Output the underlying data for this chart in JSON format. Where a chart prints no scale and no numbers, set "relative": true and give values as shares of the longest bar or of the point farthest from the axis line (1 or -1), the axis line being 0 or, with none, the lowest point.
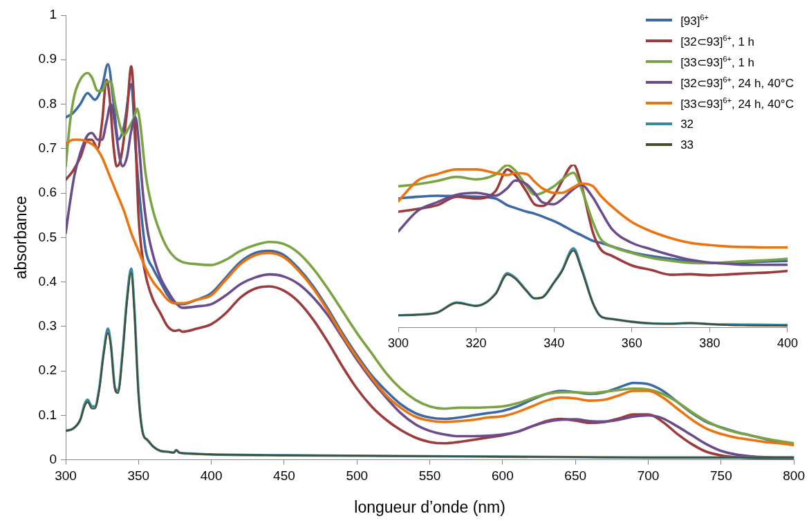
{
  "chart_data": [
    {
      "type": "line",
      "xlabel": "longueur d’onde (nm)",
      "ylabel": "absorbance",
      "xlim": [
        300,
        800
      ],
      "xticks": [
        300,
        350,
        400,
        450,
        500,
        550,
        600,
        650,
        700,
        750,
        800
      ],
      "ylim": [
        0,
        1
      ],
      "yticks": [
        0,
        0.1,
        0.2,
        0.3,
        0.4,
        0.5,
        0.6,
        0.7,
        0.8,
        0.9,
        1
      ],
      "legend": "top right",
      "series": [
        {
          "name": "[93]$^{6+}$",
          "color": "#3c68a4",
          "x": [
            300,
            305,
            310,
            315,
            320,
            325,
            329,
            333,
            336,
            340,
            345,
            348,
            352,
            355,
            360,
            365,
            370,
            375,
            380,
            390,
            400,
            410,
            420,
            430,
            440,
            450,
            460,
            470,
            480,
            490,
            500,
            510,
            520,
            530,
            540,
            550,
            560,
            570,
            580,
            590,
            600,
            610,
            620,
            630,
            640,
            650,
            660,
            670,
            680,
            690,
            700,
            710,
            720,
            730,
            740,
            750,
            760,
            770,
            780,
            790,
            800
          ],
          "values": [
            0.77,
            0.78,
            0.8,
            0.825,
            0.81,
            0.84,
            0.89,
            0.8,
            0.72,
            0.75,
            0.845,
            0.7,
            0.55,
            0.47,
            0.43,
            0.4,
            0.37,
            0.352,
            0.35,
            0.36,
            0.375,
            0.41,
            0.445,
            0.465,
            0.47,
            0.46,
            0.43,
            0.39,
            0.34,
            0.285,
            0.235,
            0.19,
            0.155,
            0.125,
            0.105,
            0.095,
            0.092,
            0.095,
            0.1,
            0.105,
            0.11,
            0.12,
            0.135,
            0.148,
            0.155,
            0.152,
            0.148,
            0.152,
            0.163,
            0.173,
            0.17,
            0.155,
            0.13,
            0.105,
            0.085,
            0.073,
            0.063,
            0.055,
            0.047,
            0.04,
            0.035
          ]
        },
        {
          "name": "[32⊂93]$^{6+}$, 1 h",
          "color": "#9c3b3b",
          "x": [
            300,
            305,
            310,
            315,
            318,
            322,
            325,
            328,
            330,
            333,
            335,
            338,
            342,
            345,
            347,
            350,
            353,
            356,
            360,
            365,
            370,
            375,
            378,
            380,
            390,
            400,
            410,
            420,
            430,
            440,
            450,
            460,
            470,
            480,
            490,
            500,
            510,
            520,
            530,
            540,
            550,
            560,
            570,
            580,
            590,
            600,
            610,
            620,
            630,
            640,
            650,
            660,
            670,
            680,
            690,
            700,
            710,
            720,
            730,
            740,
            750,
            760,
            770,
            780,
            790,
            800
          ],
          "values": [
            0.63,
            0.65,
            0.68,
            0.72,
            0.72,
            0.7,
            0.76,
            0.855,
            0.82,
            0.7,
            0.66,
            0.68,
            0.78,
            0.885,
            0.8,
            0.55,
            0.45,
            0.4,
            0.36,
            0.33,
            0.3,
            0.29,
            0.292,
            0.288,
            0.295,
            0.305,
            0.33,
            0.365,
            0.385,
            0.39,
            0.38,
            0.355,
            0.315,
            0.265,
            0.21,
            0.16,
            0.12,
            0.09,
            0.067,
            0.05,
            0.04,
            0.037,
            0.04,
            0.045,
            0.05,
            0.055,
            0.063,
            0.075,
            0.087,
            0.092,
            0.088,
            0.083,
            0.085,
            0.093,
            0.102,
            0.102,
            0.085,
            0.058,
            0.035,
            0.018,
            0.01,
            0.006,
            0.004,
            0.003,
            0.003,
            0.002
          ]
        },
        {
          "name": "[33⊂93]$^{6+}$, 1 h",
          "color": "#7aa443",
          "x": [
            300,
            303,
            306,
            310,
            315,
            318,
            322,
            325,
            328,
            331,
            334,
            337,
            340,
            343,
            347,
            349,
            351,
            355,
            360,
            365,
            370,
            375,
            380,
            390,
            400,
            410,
            420,
            430,
            440,
            450,
            460,
            470,
            480,
            490,
            500,
            510,
            520,
            530,
            540,
            550,
            560,
            570,
            580,
            590,
            600,
            610,
            620,
            630,
            640,
            650,
            660,
            670,
            680,
            690,
            700,
            710,
            720,
            730,
            740,
            750,
            760,
            770,
            780,
            790,
            800
          ],
          "values": [
            0.66,
            0.76,
            0.82,
            0.855,
            0.87,
            0.86,
            0.83,
            0.83,
            0.85,
            0.85,
            0.8,
            0.755,
            0.73,
            0.745,
            0.77,
            0.79,
            0.76,
            0.64,
            0.56,
            0.51,
            0.475,
            0.455,
            0.445,
            0.44,
            0.438,
            0.45,
            0.47,
            0.483,
            0.49,
            0.485,
            0.465,
            0.43,
            0.385,
            0.335,
            0.285,
            0.24,
            0.195,
            0.16,
            0.135,
            0.12,
            0.115,
            0.117,
            0.117,
            0.118,
            0.12,
            0.127,
            0.138,
            0.148,
            0.152,
            0.152,
            0.15,
            0.153,
            0.157,
            0.16,
            0.158,
            0.148,
            0.13,
            0.107,
            0.087,
            0.072,
            0.062,
            0.055,
            0.048,
            0.042,
            0.037
          ]
        },
        {
          "name": "[32⊂93]$^{6+}$, 24 h, 40°C",
          "color": "#6a4c8c",
          "x": [
            300,
            303,
            306,
            310,
            315,
            318,
            322,
            325,
            328,
            331,
            334,
            337,
            339,
            342,
            345,
            348,
            350,
            353,
            356,
            360,
            365,
            370,
            375,
            380,
            390,
            400,
            410,
            420,
            430,
            440,
            450,
            460,
            470,
            480,
            490,
            500,
            510,
            520,
            530,
            540,
            550,
            560,
            570,
            580,
            590,
            600,
            610,
            620,
            630,
            640,
            650,
            660,
            670,
            680,
            690,
            700,
            710,
            720,
            730,
            740,
            750,
            760,
            770,
            780,
            790,
            800
          ],
          "values": [
            0.51,
            0.58,
            0.64,
            0.69,
            0.73,
            0.735,
            0.72,
            0.72,
            0.76,
            0.8,
            0.75,
            0.68,
            0.66,
            0.68,
            0.74,
            0.77,
            0.72,
            0.6,
            0.52,
            0.46,
            0.41,
            0.38,
            0.355,
            0.342,
            0.345,
            0.35,
            0.37,
            0.395,
            0.41,
            0.417,
            0.412,
            0.395,
            0.365,
            0.325,
            0.275,
            0.225,
            0.18,
            0.14,
            0.105,
            0.08,
            0.065,
            0.057,
            0.053,
            0.053,
            0.054,
            0.057,
            0.063,
            0.075,
            0.085,
            0.09,
            0.091,
            0.087,
            0.086,
            0.09,
            0.097,
            0.1,
            0.093,
            0.075,
            0.055,
            0.035,
            0.02,
            0.012,
            0.008,
            0.006,
            0.005,
            0.005
          ]
        },
        {
          "name": "[33⊂93]$^{6+}$, 24 h, 40°C",
          "color": "#ec7410",
          "x": [
            300,
            305,
            310,
            315,
            320,
            325,
            330,
            335,
            340,
            345,
            350,
            355,
            360,
            365,
            370,
            375,
            380,
            390,
            400,
            410,
            420,
            430,
            440,
            450,
            460,
            470,
            480,
            490,
            500,
            510,
            520,
            530,
            540,
            550,
            560,
            570,
            580,
            590,
            600,
            610,
            620,
            630,
            640,
            650,
            660,
            670,
            680,
            690,
            700,
            710,
            720,
            730,
            740,
            750,
            760,
            770,
            780,
            790,
            800
          ],
          "values": [
            0.71,
            0.72,
            0.72,
            0.715,
            0.705,
            0.68,
            0.64,
            0.6,
            0.56,
            0.51,
            0.47,
            0.43,
            0.4,
            0.38,
            0.36,
            0.352,
            0.352,
            0.36,
            0.37,
            0.405,
            0.44,
            0.46,
            0.465,
            0.455,
            0.425,
            0.385,
            0.335,
            0.28,
            0.23,
            0.185,
            0.145,
            0.117,
            0.097,
            0.088,
            0.085,
            0.087,
            0.09,
            0.095,
            0.098,
            0.107,
            0.12,
            0.133,
            0.14,
            0.138,
            0.133,
            0.135,
            0.145,
            0.155,
            0.155,
            0.14,
            0.115,
            0.09,
            0.07,
            0.058,
            0.05,
            0.045,
            0.04,
            0.037,
            0.033
          ]
        },
        {
          "name": "32",
          "color": "#3489a0",
          "x": [
            300,
            305,
            310,
            313,
            315,
            318,
            320,
            323,
            326,
            329,
            331,
            334,
            336,
            339,
            342,
            345,
            347,
            350,
            353,
            356,
            360,
            365,
            370,
            374,
            376,
            378,
            385,
            400,
            450,
            500,
            550,
            600,
            650,
            700,
            750,
            800
          ],
          "values": [
            0.065,
            0.07,
            0.09,
            0.125,
            0.135,
            0.12,
            0.12,
            0.16,
            0.24,
            0.295,
            0.26,
            0.16,
            0.155,
            0.24,
            0.36,
            0.43,
            0.35,
            0.15,
            0.06,
            0.045,
            0.03,
            0.02,
            0.018,
            0.016,
            0.022,
            0.016,
            0.014,
            0.012,
            0.01,
            0.009,
            0.008,
            0.007,
            0.006,
            0.005,
            0.005,
            0.005
          ]
        },
        {
          "name": "33",
          "color": "#4a4a2e",
          "x": [
            300,
            305,
            310,
            313,
            315,
            318,
            320,
            323,
            326,
            329,
            331,
            334,
            336,
            339,
            342,
            345,
            347,
            350,
            353,
            356,
            360,
            365,
            370,
            374,
            376,
            378,
            385,
            400,
            450,
            500,
            550,
            600,
            650,
            700,
            750,
            800
          ],
          "values": [
            0.065,
            0.07,
            0.09,
            0.12,
            0.13,
            0.115,
            0.115,
            0.155,
            0.235,
            0.285,
            0.255,
            0.155,
            0.15,
            0.235,
            0.35,
            0.42,
            0.34,
            0.145,
            0.058,
            0.045,
            0.03,
            0.02,
            0.018,
            0.016,
            0.021,
            0.016,
            0.014,
            0.012,
            0.01,
            0.009,
            0.008,
            0.007,
            0.006,
            0.005,
            0.005,
            0.005
          ]
        }
      ]
    },
    {
      "type": "line",
      "relative": true,
      "xlim": [
        300,
        400
      ],
      "xticks": [
        300,
        320,
        340,
        360,
        380,
        400
      ],
      "x": [
        300,
        305,
        310,
        315,
        320,
        325,
        328,
        330,
        333,
        335,
        337,
        340,
        342,
        345,
        347,
        350,
        352,
        355,
        360,
        365,
        370,
        375,
        380,
        385,
        390,
        395,
        400
      ],
      "series": [
        {
          "color": "#3c68a4",
          "values": [
            0.792,
            0.803,
            0.809,
            0.806,
            0.803,
            0.792,
            0.751,
            0.734,
            0.711,
            0.699,
            0.682,
            0.653,
            0.63,
            0.59,
            0.567,
            0.532,
            0.52,
            0.497,
            0.462,
            0.439,
            0.422,
            0.407,
            0.397,
            0.397,
            0.401,
            0.405,
            0.409
          ]
        },
        {
          "color": "#9c3b3b",
          "values": [
            0.711,
            0.728,
            0.751,
            0.803,
            0.792,
            0.838,
            0.971,
            0.936,
            0.832,
            0.757,
            0.746,
            0.809,
            0.896,
            1.0,
            0.879,
            0.584,
            0.48,
            0.439,
            0.381,
            0.353,
            0.324,
            0.327,
            0.321,
            0.326,
            0.333,
            0.338,
            0.347
          ]
        },
        {
          "color": "#7aa443",
          "values": [
            0.867,
            0.88,
            0.9,
            0.925,
            0.91,
            0.94,
            0.997,
            0.965,
            0.867,
            0.815,
            0.827,
            0.867,
            0.907,
            0.95,
            0.855,
            0.647,
            0.543,
            0.497,
            0.457,
            0.428,
            0.41,
            0.397,
            0.395,
            0.402,
            0.408,
            0.414,
            0.422
          ]
        },
        {
          "color": "#6a4c8c",
          "values": [
            0.59,
            0.717,
            0.769,
            0.815,
            0.827,
            0.809,
            0.855,
            0.902,
            0.879,
            0.827,
            0.769,
            0.757,
            0.786,
            0.85,
            0.876,
            0.798,
            0.717,
            0.601,
            0.52,
            0.48,
            0.445,
            0.416,
            0.399,
            0.391,
            0.385,
            0.385,
            0.385
          ]
        },
        {
          "color": "#ec7410",
          "values": [
            0.775,
            0.902,
            0.942,
            0.971,
            0.971,
            0.948,
            0.936,
            0.948,
            0.942,
            0.896,
            0.855,
            0.827,
            0.827,
            0.861,
            0.884,
            0.867,
            0.809,
            0.74,
            0.647,
            0.59,
            0.549,
            0.52,
            0.506,
            0.497,
            0.494,
            0.491,
            0.491
          ]
        },
        {
          "color": "#3489a0",
          "values": [
            0.075,
            0.079,
            0.092,
            0.153,
            0.133,
            0.208,
            0.333,
            0.306,
            0.225,
            0.179,
            0.185,
            0.277,
            0.347,
            0.486,
            0.37,
            0.15,
            0.069,
            0.052,
            0.035,
            0.025,
            0.023,
            0.027,
            0.021,
            0.018,
            0.017,
            0.016,
            0.015
          ]
        },
        {
          "color": "#4a4a2e",
          "values": [
            0.075,
            0.079,
            0.092,
            0.151,
            0.133,
            0.205,
            0.324,
            0.3,
            0.222,
            0.179,
            0.185,
            0.275,
            0.343,
            0.472,
            0.358,
            0.148,
            0.069,
            0.052,
            0.035,
            0.025,
            0.023,
            0.027,
            0.021,
            0.014,
            0.012,
            0.011,
            0.01
          ]
        }
      ]
    }
  ]
}
